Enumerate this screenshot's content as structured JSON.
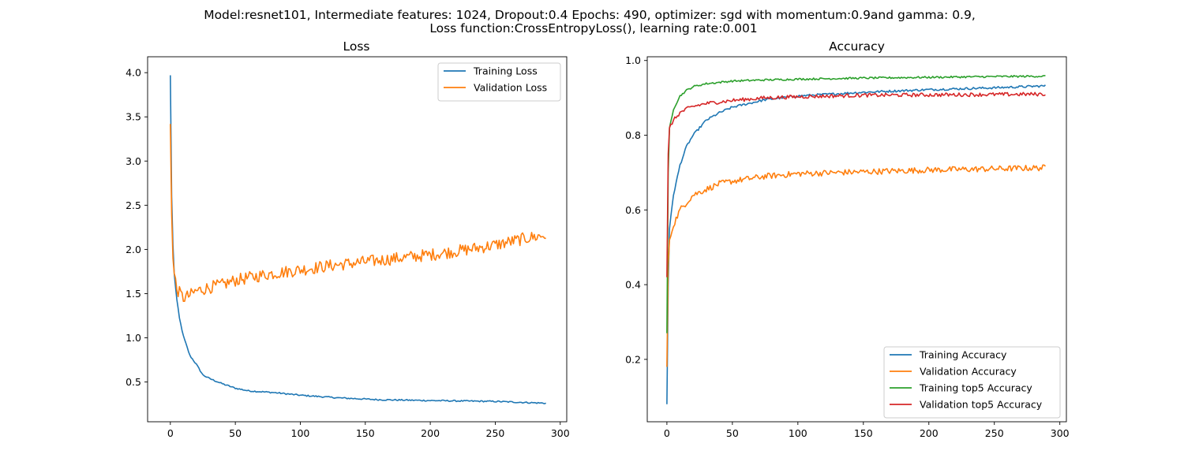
{
  "figure": {
    "suptitle_line1": "Model:resnet101, Intermediate features: 1024, Dropout:0.4 Epochs: 490, optimizer: sgd with momentum:0.9and gamma: 0.9,",
    "suptitle_line2": "Loss function:CrossEntropyLoss(), learning rate:0.001"
  },
  "colors": {
    "blue": "#1f77b4",
    "orange": "#ff7f0e",
    "green": "#2ca02c",
    "red": "#d62728"
  },
  "chart_data": [
    {
      "type": "line",
      "title": "Loss",
      "xlabel": "",
      "ylabel": "",
      "xlim": [
        -17.5,
        305
      ],
      "ylim": [
        0.05,
        4.18
      ],
      "xticks": [
        0,
        50,
        100,
        150,
        200,
        250,
        300
      ],
      "yticks": [
        0.5,
        1.0,
        1.5,
        2.0,
        2.5,
        3.0,
        3.5,
        4.0
      ],
      "legend_position": "upper right",
      "grid": false,
      "x_range": [
        0,
        289
      ],
      "series": [
        {
          "name": "Training Loss",
          "color": "#1f77b4",
          "noise": 0.008,
          "keypoints": [
            [
              0,
              3.97
            ],
            [
              1,
              2.6
            ],
            [
              2,
              2.05
            ],
            [
              3,
              1.72
            ],
            [
              5,
              1.43
            ],
            [
              7,
              1.22
            ],
            [
              10,
              1.02
            ],
            [
              15,
              0.8
            ],
            [
              20,
              0.7
            ],
            [
              25,
              0.58
            ],
            [
              30,
              0.54
            ],
            [
              40,
              0.48
            ],
            [
              50,
              0.43
            ],
            [
              60,
              0.4
            ],
            [
              80,
              0.38
            ],
            [
              100,
              0.35
            ],
            [
              130,
              0.32
            ],
            [
              160,
              0.3
            ],
            [
              200,
              0.29
            ],
            [
              250,
              0.28
            ],
            [
              289,
              0.26
            ]
          ]
        },
        {
          "name": "Validation Loss",
          "color": "#ff7f0e",
          "noise": 0.07,
          "keypoints": [
            [
              0,
              3.42
            ],
            [
              1,
              2.4
            ],
            [
              2,
              1.9
            ],
            [
              3,
              1.72
            ],
            [
              5,
              1.55
            ],
            [
              10,
              1.45
            ],
            [
              15,
              1.48
            ],
            [
              20,
              1.53
            ],
            [
              30,
              1.57
            ],
            [
              40,
              1.6
            ],
            [
              50,
              1.65
            ],
            [
              75,
              1.72
            ],
            [
              100,
              1.77
            ],
            [
              125,
              1.82
            ],
            [
              150,
              1.86
            ],
            [
              175,
              1.9
            ],
            [
              200,
              1.94
            ],
            [
              225,
              1.99
            ],
            [
              250,
              2.05
            ],
            [
              275,
              2.13
            ],
            [
              289,
              2.16
            ]
          ]
        }
      ]
    },
    {
      "type": "line",
      "title": "Accuracy",
      "xlabel": "",
      "ylabel": "",
      "xlim": [
        -15,
        305
      ],
      "ylim": [
        0.033,
        1.01
      ],
      "xticks": [
        0,
        50,
        100,
        150,
        200,
        250,
        300
      ],
      "yticks": [
        0.2,
        0.4,
        0.6,
        0.8,
        1.0
      ],
      "legend_position": "lower right",
      "grid": false,
      "x_range": [
        0,
        289
      ],
      "series": [
        {
          "name": "Training Accuracy",
          "color": "#1f77b4",
          "noise": 0.003,
          "keypoints": [
            [
              0,
              0.08
            ],
            [
              1,
              0.4
            ],
            [
              2,
              0.55
            ],
            [
              5,
              0.64
            ],
            [
              10,
              0.72
            ],
            [
              15,
              0.77
            ],
            [
              20,
              0.8
            ],
            [
              30,
              0.84
            ],
            [
              40,
              0.86
            ],
            [
              50,
              0.875
            ],
            [
              75,
              0.895
            ],
            [
              100,
              0.905
            ],
            [
              150,
              0.915
            ],
            [
              200,
              0.922
            ],
            [
              250,
              0.927
            ],
            [
              289,
              0.932
            ]
          ]
        },
        {
          "name": "Validation Accuracy",
          "color": "#ff7f0e",
          "noise": 0.008,
          "keypoints": [
            [
              0,
              0.18
            ],
            [
              1,
              0.45
            ],
            [
              2,
              0.52
            ],
            [
              5,
              0.56
            ],
            [
              10,
              0.6
            ],
            [
              15,
              0.62
            ],
            [
              20,
              0.64
            ],
            [
              30,
              0.655
            ],
            [
              40,
              0.67
            ],
            [
              50,
              0.677
            ],
            [
              75,
              0.69
            ],
            [
              100,
              0.697
            ],
            [
              150,
              0.702
            ],
            [
              200,
              0.707
            ],
            [
              250,
              0.71
            ],
            [
              289,
              0.713
            ]
          ]
        },
        {
          "name": "Training top5 Accuracy",
          "color": "#2ca02c",
          "noise": 0.0025,
          "keypoints": [
            [
              0,
              0.27
            ],
            [
              1,
              0.7
            ],
            [
              2,
              0.82
            ],
            [
              5,
              0.87
            ],
            [
              10,
              0.905
            ],
            [
              15,
              0.92
            ],
            [
              20,
              0.93
            ],
            [
              30,
              0.938
            ],
            [
              50,
              0.945
            ],
            [
              75,
              0.948
            ],
            [
              100,
              0.95
            ],
            [
              150,
              0.953
            ],
            [
              200,
              0.955
            ],
            [
              250,
              0.957
            ],
            [
              289,
              0.958
            ]
          ]
        },
        {
          "name": "Validation top5 Accuracy",
          "color": "#d62728",
          "noise": 0.005,
          "keypoints": [
            [
              0,
              0.42
            ],
            [
              1,
              0.75
            ],
            [
              2,
              0.82
            ],
            [
              5,
              0.84
            ],
            [
              10,
              0.86
            ],
            [
              15,
              0.87
            ],
            [
              20,
              0.877
            ],
            [
              30,
              0.885
            ],
            [
              50,
              0.893
            ],
            [
              75,
              0.9
            ],
            [
              100,
              0.903
            ],
            [
              150,
              0.907
            ],
            [
              200,
              0.908
            ],
            [
              250,
              0.909
            ],
            [
              289,
              0.91
            ]
          ]
        }
      ]
    }
  ]
}
